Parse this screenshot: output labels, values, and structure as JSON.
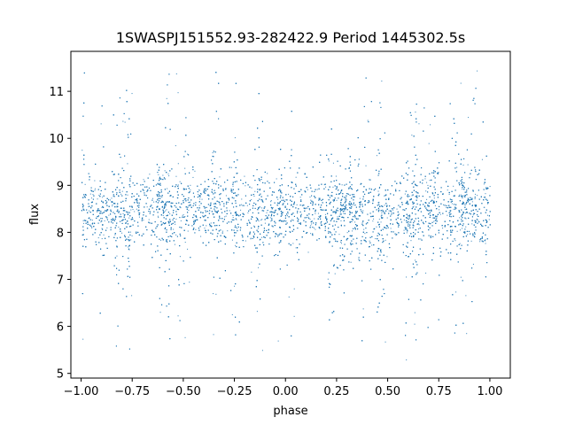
{
  "chart_data": {
    "type": "scatter",
    "title": "1SWASPJ151552.93-282422.9 Period 1445302.5s",
    "xlabel": "phase",
    "ylabel": "flux",
    "xlim": [
      -1.05,
      1.1
    ],
    "ylim": [
      4.9,
      11.85
    ],
    "x_ticks": [
      -1.0,
      -0.75,
      -0.5,
      -0.25,
      0.0,
      0.25,
      0.5,
      0.75,
      1.0
    ],
    "x_tick_labels": [
      "−1.00",
      "−0.75",
      "−0.50",
      "−0.25",
      "0.00",
      "0.25",
      "0.50",
      "0.75",
      "1.00"
    ],
    "y_ticks": [
      5,
      6,
      7,
      8,
      9,
      10,
      11
    ],
    "y_tick_labels": [
      "5",
      "6",
      "7",
      "8",
      "9",
      "10",
      "11"
    ],
    "grid": false,
    "marker_color": "#1f77b4",
    "point_density": "dense",
    "phase_range": [
      -1.0,
      1.0
    ],
    "flux_core_range": [
      7.8,
      9.0
    ],
    "flux_center": 8.45,
    "flux_full_range": [
      5.2,
      11.5
    ]
  }
}
